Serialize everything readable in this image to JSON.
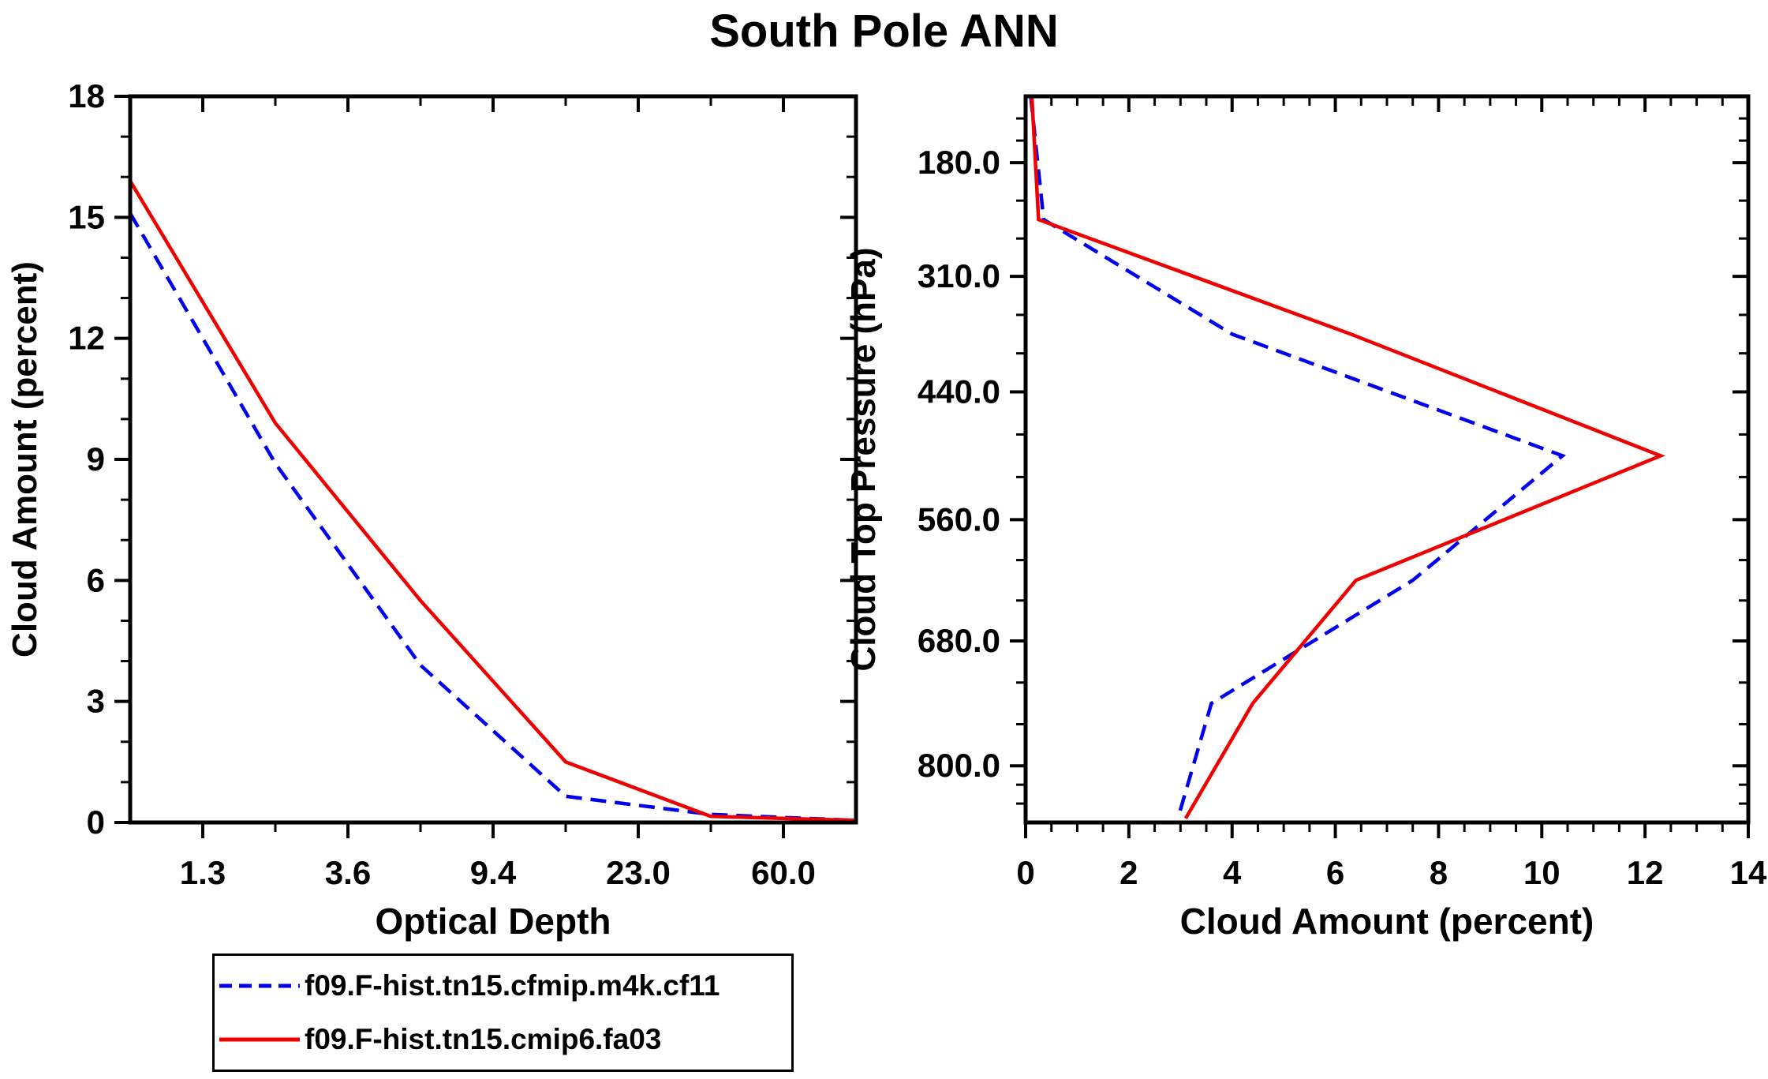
{
  "title": "South Pole ANN",
  "colors": {
    "series1_blue": "#0000ee",
    "series2_red": "#ee0000",
    "axis": "#000000",
    "background": "#ffffff"
  },
  "legend": {
    "entries": [
      {
        "label": "f09.F-hist.tn15.cfmip.m4k.cf11",
        "line_style": "dashed",
        "color": "#0000ee"
      },
      {
        "label": "f09.F-hist.tn15.cmip6.fa03",
        "line_style": "solid",
        "color": "#ee0000"
      }
    ]
  },
  "chart_data": [
    {
      "type": "line",
      "panel": "left",
      "xlabel": "Optical Depth",
      "ylabel": "Cloud Amount (percent)",
      "xlim": [
        0.5,
        5.5
      ],
      "x_tick_positions": [
        1,
        2,
        3,
        4,
        5
      ],
      "x_tick_labels": [
        "1.3",
        "3.6",
        "9.4",
        "23.0",
        "60.0"
      ],
      "x_minor_step": 0.5,
      "ylim": [
        0,
        18
      ],
      "y_ticks": [
        0,
        3,
        6,
        9,
        12,
        15,
        18
      ],
      "y_minor_step": 1,
      "grid": false,
      "series": [
        {
          "name": "f09.F-hist.tn15.cfmip.m4k.cf11",
          "color": "#0000ee",
          "style": "dashed",
          "x": [
            0.5,
            1.5,
            2.5,
            3.5,
            4.5,
            5.5
          ],
          "y": [
            15.1,
            8.9,
            3.9,
            0.65,
            0.2,
            0.05
          ]
        },
        {
          "name": "f09.F-hist.tn15.cmip6.fa03",
          "color": "#ee0000",
          "style": "solid",
          "x": [
            0.5,
            1.5,
            2.5,
            3.5,
            4.5,
            5.5
          ],
          "y": [
            15.9,
            9.9,
            5.5,
            1.5,
            0.15,
            0.05
          ]
        }
      ]
    },
    {
      "type": "line",
      "panel": "right",
      "xlabel": "Cloud Amount (percent)",
      "ylabel": "Cloud Top Pressure (hPa)",
      "xlim": [
        0,
        14
      ],
      "x_ticks": [
        0,
        2,
        4,
        6,
        8,
        10,
        12,
        14
      ],
      "x_minor_step": 0.5,
      "y_axis_inverted": true,
      "y_tick_pressures": [
        180,
        310,
        440,
        560,
        680,
        800
      ],
      "y_tick_labels": [
        "180.0",
        "310.0",
        "440.0",
        "560.0",
        "680.0",
        "800.0"
      ],
      "grid": false,
      "series": [
        {
          "name": "f09.F-hist.tn15.cfmip.m4k.cf11",
          "color": "#0000ee",
          "style": "dashed",
          "pressure": [
            30,
            245,
            375,
            500,
            620,
            740,
            865
          ],
          "x": [
            0.1,
            0.35,
            4.0,
            10.4,
            7.5,
            3.6,
            2.95
          ]
        },
        {
          "name": "f09.F-hist.tn15.cmip6.fa03",
          "color": "#ee0000",
          "style": "solid",
          "pressure": [
            30,
            245,
            375,
            500,
            620,
            740,
            865
          ],
          "x": [
            0.12,
            0.25,
            6.3,
            12.3,
            6.4,
            4.4,
            3.1
          ]
        }
      ]
    }
  ]
}
